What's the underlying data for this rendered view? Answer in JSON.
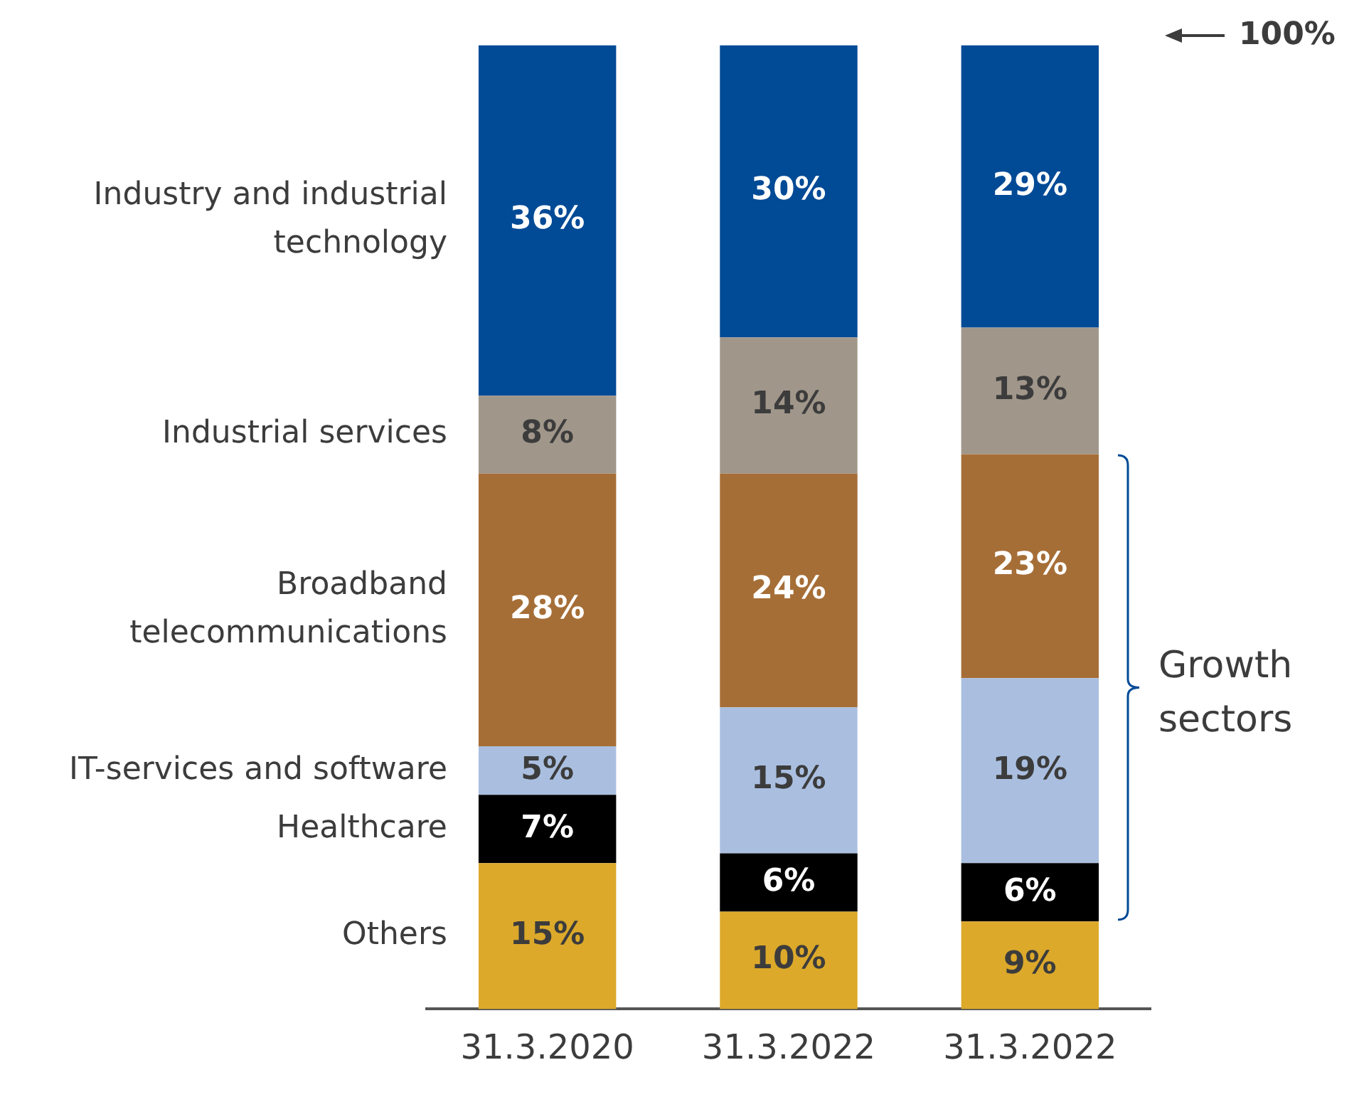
{
  "chart_data": {
    "type": "bar",
    "stacked": true,
    "grid": false,
    "legend": false,
    "tick_labels": "x",
    "categories": [
      "31.3.2020",
      "31.3.2022",
      "31.3.2022"
    ],
    "series": [
      {
        "name": "Others",
        "color": "#dca92a",
        "values": [
          15,
          10,
          9
        ],
        "value_labels": [
          "15%",
          "10%",
          "9%"
        ]
      },
      {
        "name": "Healthcare",
        "color": "#000000",
        "values": [
          7,
          6,
          6
        ],
        "value_labels": [
          "7%",
          "6%",
          "6%"
        ]
      },
      {
        "name": "IT-services and software",
        "color": "#aabfe0",
        "values": [
          5,
          15,
          19
        ],
        "value_labels": [
          "5%",
          "15%",
          "19%"
        ]
      },
      {
        "name": "Broadband telecommunications",
        "color": "#a66e37",
        "values": [
          28,
          24,
          23
        ],
        "value_labels": [
          "28%",
          "24%",
          "23%"
        ]
      },
      {
        "name": "Industrial services",
        "color": "#a0968a",
        "values": [
          8,
          14,
          13
        ],
        "value_labels": [
          "8%",
          "14%",
          "13%"
        ]
      },
      {
        "name": "Industry and industrial technology",
        "color": "#004a96",
        "values": [
          36,
          30,
          29
        ],
        "value_labels": [
          "36%",
          "30%",
          "29%"
        ]
      }
    ],
    "annotations": [
      "100%",
      "Growth sectors"
    ]
  }
}
